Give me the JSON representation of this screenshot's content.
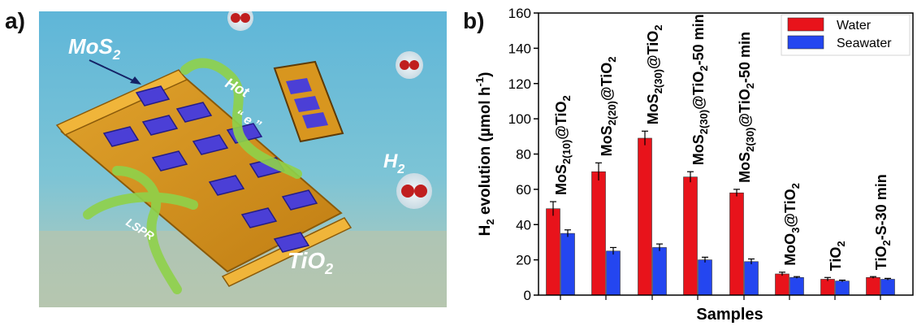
{
  "panels": {
    "a": "a)",
    "b": "b)"
  },
  "illustration": {
    "mos2": "MoS",
    "mos2_sub": "2",
    "tio2": "TiO",
    "tio2_sub": "2",
    "h2": "H",
    "h2_sub": "2",
    "hot": "Hot",
    "e": "“ e ”",
    "lspr": "LSPR"
  },
  "chart_data": {
    "type": "bar",
    "xlabel": "Samples",
    "ylabel": "H2 evolution (µmol h-1)",
    "ylim": [
      0,
      160
    ],
    "yticks": [
      0,
      20,
      40,
      60,
      80,
      100,
      120,
      140,
      160
    ],
    "legend_position": "top-right",
    "colors": {
      "Water": "#e8131b",
      "Seawater": "#2446f0"
    },
    "categories": [
      "MoS2(10)@TiO2",
      "MoS2(20)@TiO2",
      "MoS2(30)@TiO2",
      "MoS2(30)@TiO2-50 min",
      "MoS2(30)@TiO2-50 min",
      "MoO3@TiO2",
      "TiO2",
      "TiO2-S-30 min"
    ],
    "series": [
      {
        "name": "Water",
        "values": [
          49,
          70,
          89,
          67,
          58,
          12,
          9,
          10
        ],
        "errors": [
          4,
          5,
          4,
          3,
          2,
          1,
          1,
          0.5
        ]
      },
      {
        "name": "Seawater",
        "values": [
          35,
          25,
          27,
          20,
          19,
          10,
          8,
          9
        ],
        "errors": [
          2,
          2,
          2,
          1.5,
          1.5,
          0.5,
          0.5,
          0.5
        ]
      }
    ]
  }
}
